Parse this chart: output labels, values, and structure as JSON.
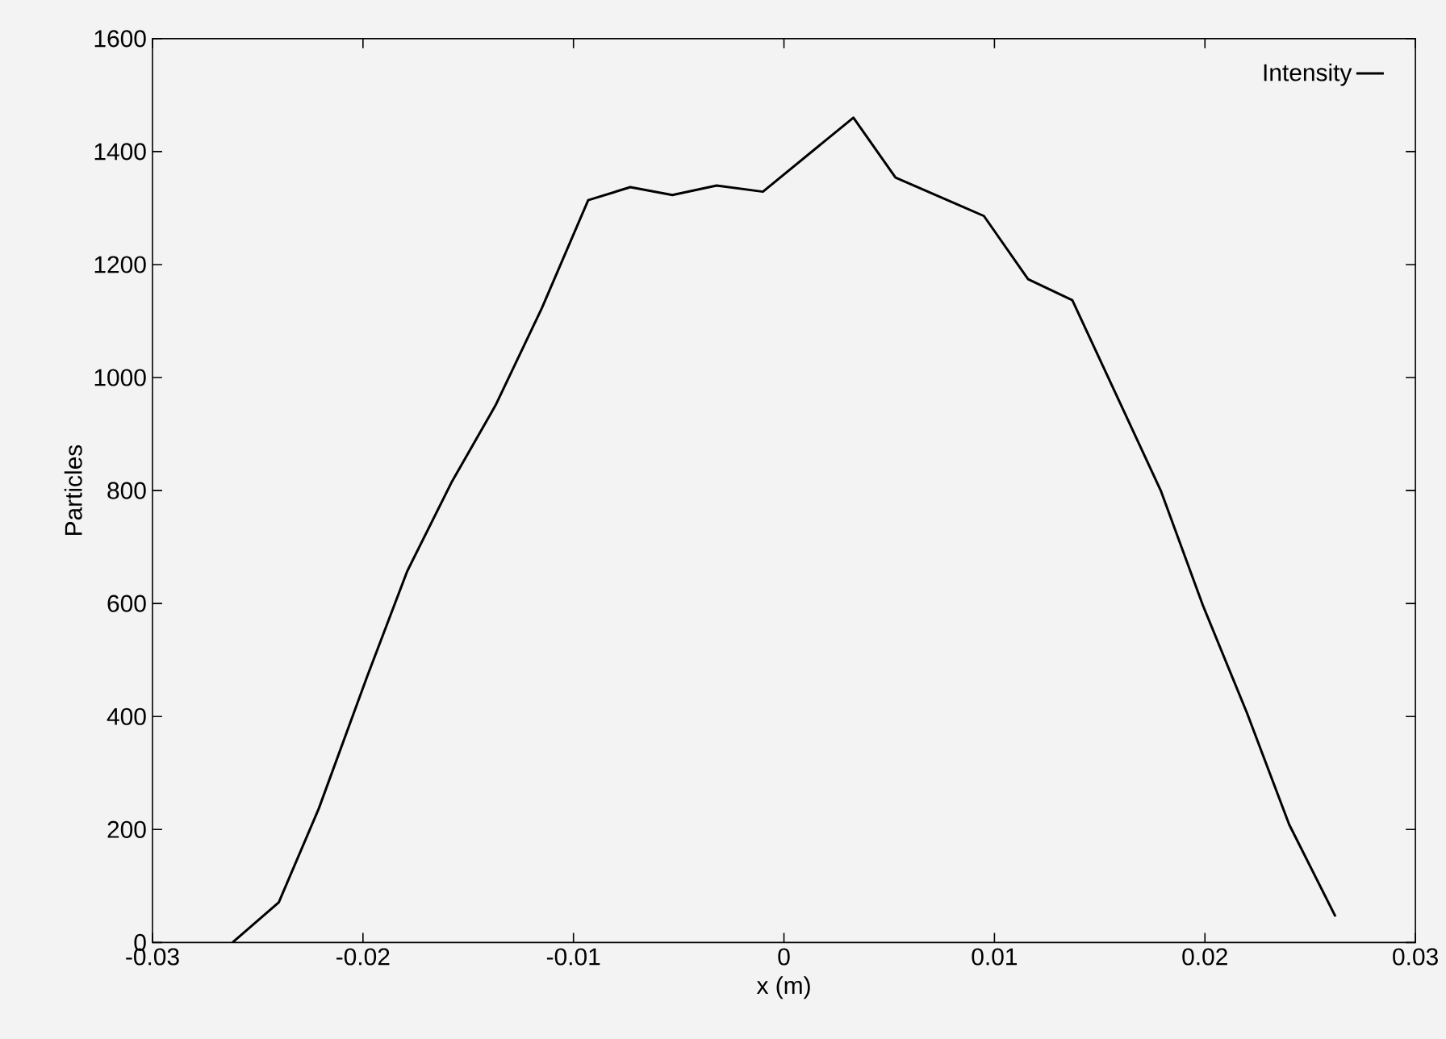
{
  "chart_data": {
    "type": "line",
    "xlabel": "x (m)",
    "ylabel": "Particles",
    "xlim": [
      -0.03,
      0.03
    ],
    "ylim": [
      0,
      1600
    ],
    "xticks": [
      -0.03,
      -0.02,
      -0.01,
      0,
      0.01,
      0.02,
      0.03
    ],
    "yticks": [
      0,
      200,
      400,
      600,
      800,
      1000,
      1200,
      1400,
      1600
    ],
    "legend": "top right",
    "grid": false,
    "series": [
      {
        "name": "Intensity",
        "color": "#000000",
        "x": [
          -0.0262,
          -0.024,
          -0.0221,
          -0.0198,
          -0.0179,
          -0.0158,
          -0.0137,
          -0.0115,
          -0.0093,
          -0.0073,
          -0.0053,
          -0.0032,
          -0.001,
          0.0033,
          0.0053,
          0.0095,
          0.0116,
          0.0137,
          0.0179,
          0.0199,
          0.022,
          0.024,
          0.0262
        ],
        "values": [
          0,
          71,
          237,
          471,
          657,
          814,
          951,
          1123,
          1314,
          1337,
          1323,
          1340,
          1329,
          1460,
          1354,
          1286,
          1174,
          1137,
          800,
          597,
          406,
          209,
          46
        ]
      }
    ]
  }
}
